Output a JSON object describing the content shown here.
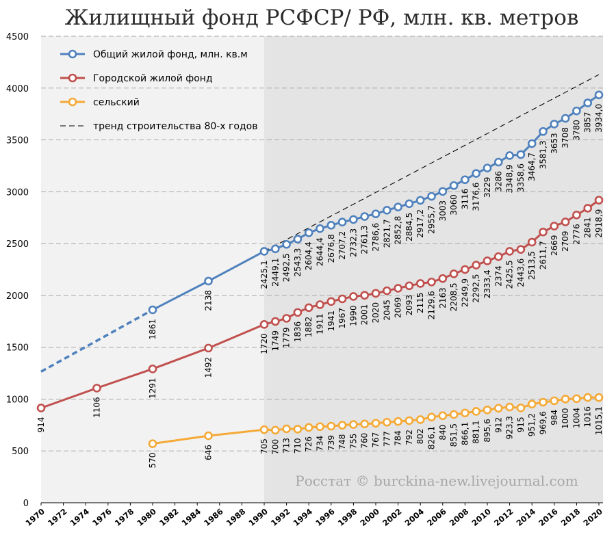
{
  "chart_data": {
    "type": "line",
    "title": "Жилищный фонд РСФСР/ РФ, млн. кв. метров",
    "source": "Росстат © burckina-new.livejournal.com",
    "ylim": [
      0,
      4500
    ],
    "yticks": [
      "0",
      "500",
      "1000",
      "1500",
      "2000",
      "2500",
      "3000",
      "3500",
      "4000",
      "4500"
    ],
    "xlim": [
      1970,
      2020
    ],
    "xticks": [
      "1970",
      "1972",
      "1974",
      "1976",
      "1978",
      "1980",
      "1982",
      "1984",
      "1986",
      "1988",
      "1990",
      "1992",
      "1994",
      "1996",
      "1998",
      "2000",
      "2002",
      "2004",
      "2006",
      "2008",
      "2010",
      "2012",
      "2014",
      "2016",
      "2018",
      "2020"
    ],
    "grid": true,
    "shaded_region": [
      1990,
      2020
    ],
    "legend_position": "top-left",
    "series": [
      {
        "name": "Общий жилой фонд, млн. кв.м",
        "color": "#4f81bd",
        "label_position": "below",
        "points": [
          {
            "x": 1980,
            "y": 1861,
            "label": "1861"
          },
          {
            "x": 1985,
            "y": 2138,
            "label": "2138"
          },
          {
            "x": 1990,
            "y": 2425.1,
            "label": "2425,1"
          },
          {
            "x": 1991,
            "y": 2449.1,
            "label": "2449,1"
          },
          {
            "x": 1992,
            "y": 2492.5,
            "label": "2492,5"
          },
          {
            "x": 1993,
            "y": 2543.3,
            "label": "2543,3"
          },
          {
            "x": 1994,
            "y": 2604.4,
            "label": "2604,4"
          },
          {
            "x": 1995,
            "y": 2644.4,
            "label": "2644,4"
          },
          {
            "x": 1996,
            "y": 2676.8,
            "label": "2676,8"
          },
          {
            "x": 1997,
            "y": 2707.2,
            "label": "2707,2"
          },
          {
            "x": 1998,
            "y": 2732.3,
            "label": "2732,3"
          },
          {
            "x": 1999,
            "y": 2761.3,
            "label": "2761,3"
          },
          {
            "x": 2000,
            "y": 2786.6,
            "label": "2786,6"
          },
          {
            "x": 2001,
            "y": 2821.7,
            "label": "2821,7"
          },
          {
            "x": 2002,
            "y": 2852.8,
            "label": "2852,8"
          },
          {
            "x": 2003,
            "y": 2884.5,
            "label": "2884,5"
          },
          {
            "x": 2004,
            "y": 2917.2,
            "label": "2917,2"
          },
          {
            "x": 2005,
            "y": 2955.7,
            "label": "2955,7"
          },
          {
            "x": 2006,
            "y": 3003,
            "label": "3003"
          },
          {
            "x": 2007,
            "y": 3060,
            "label": "3060"
          },
          {
            "x": 2008,
            "y": 3116,
            "label": "3116"
          },
          {
            "x": 2009,
            "y": 3176.6,
            "label": "3176,6"
          },
          {
            "x": 2010,
            "y": 3229,
            "label": "3229"
          },
          {
            "x": 2011,
            "y": 3286,
            "label": "3286"
          },
          {
            "x": 2012,
            "y": 3348.9,
            "label": "3348,9"
          },
          {
            "x": 2013,
            "y": 3358.6,
            "label": "3358,6"
          },
          {
            "x": 2014,
            "y": 3464.7,
            "label": "3464,7"
          },
          {
            "x": 2015,
            "y": 3581.3,
            "label": "3581,3"
          },
          {
            "x": 2016,
            "y": 3653,
            "label": "3653"
          },
          {
            "x": 2017,
            "y": 3708,
            "label": "3708"
          },
          {
            "x": 2018,
            "y": 3780,
            "label": "3780"
          },
          {
            "x": 2019,
            "y": 3857,
            "label": "3857"
          },
          {
            "x": 2020,
            "y": 3934.0,
            "label": "3934,0"
          }
        ],
        "extrapolation": [
          {
            "x": 1970,
            "y": 1265
          },
          {
            "x": 1980,
            "y": 1861
          }
        ]
      },
      {
        "name": "Городской жилой фонд",
        "color": "#c0504d",
        "label_position": "below",
        "points": [
          {
            "x": 1970,
            "y": 914,
            "label": "914"
          },
          {
            "x": 1975,
            "y": 1106,
            "label": "1106"
          },
          {
            "x": 1980,
            "y": 1291,
            "label": "1291"
          },
          {
            "x": 1985,
            "y": 1492,
            "label": "1492"
          },
          {
            "x": 1990,
            "y": 1720,
            "label": "1720"
          },
          {
            "x": 1991,
            "y": 1749,
            "label": "1749"
          },
          {
            "x": 1992,
            "y": 1779,
            "label": "1779"
          },
          {
            "x": 1993,
            "y": 1836,
            "label": "1836"
          },
          {
            "x": 1994,
            "y": 1882,
            "label": "1882"
          },
          {
            "x": 1995,
            "y": 1911,
            "label": "1911"
          },
          {
            "x": 1996,
            "y": 1941,
            "label": "1941"
          },
          {
            "x": 1997,
            "y": 1967,
            "label": "1967"
          },
          {
            "x": 1998,
            "y": 1990,
            "label": "1990"
          },
          {
            "x": 1999,
            "y": 2001,
            "label": "2001"
          },
          {
            "x": 2000,
            "y": 2020,
            "label": "2020"
          },
          {
            "x": 2001,
            "y": 2045,
            "label": "2045"
          },
          {
            "x": 2002,
            "y": 2069,
            "label": "2069"
          },
          {
            "x": 2003,
            "y": 2093,
            "label": "2093"
          },
          {
            "x": 2004,
            "y": 2115,
            "label": "2115"
          },
          {
            "x": 2005,
            "y": 2129.6,
            "label": "2129,6"
          },
          {
            "x": 2006,
            "y": 2163,
            "label": "2163"
          },
          {
            "x": 2007,
            "y": 2208.5,
            "label": "2208,5"
          },
          {
            "x": 2008,
            "y": 2249.9,
            "label": "2249,9"
          },
          {
            "x": 2009,
            "y": 2292.5,
            "label": "2292,5"
          },
          {
            "x": 2010,
            "y": 2333.4,
            "label": "2333,4"
          },
          {
            "x": 2011,
            "y": 2374,
            "label": "2374"
          },
          {
            "x": 2012,
            "y": 2425.5,
            "label": "2425,5"
          },
          {
            "x": 2013,
            "y": 2443.6,
            "label": "2443,6"
          },
          {
            "x": 2014,
            "y": 2513.5,
            "label": "2513,5"
          },
          {
            "x": 2015,
            "y": 2611.7,
            "label": "2611,7"
          },
          {
            "x": 2016,
            "y": 2669,
            "label": "2669"
          },
          {
            "x": 2017,
            "y": 2709,
            "label": "2709"
          },
          {
            "x": 2018,
            "y": 2776,
            "label": "2776"
          },
          {
            "x": 2019,
            "y": 2841,
            "label": "2841"
          },
          {
            "x": 2020,
            "y": 2918.9,
            "label": "2918,9"
          }
        ]
      },
      {
        "name": "сельский",
        "color": "#f5a936",
        "label_position": "below",
        "points": [
          {
            "x": 1980,
            "y": 570,
            "label": "570"
          },
          {
            "x": 1985,
            "y": 646,
            "label": "646"
          },
          {
            "x": 1990,
            "y": 705,
            "label": "705"
          },
          {
            "x": 1991,
            "y": 700,
            "label": "700"
          },
          {
            "x": 1992,
            "y": 713,
            "label": "713"
          },
          {
            "x": 1993,
            "y": 710,
            "label": "710"
          },
          {
            "x": 1994,
            "y": 726,
            "label": "726"
          },
          {
            "x": 1995,
            "y": 734,
            "label": "734"
          },
          {
            "x": 1996,
            "y": 739,
            "label": "739"
          },
          {
            "x": 1997,
            "y": 748,
            "label": "748"
          },
          {
            "x": 1998,
            "y": 755,
            "label": "755"
          },
          {
            "x": 1999,
            "y": 760,
            "label": "760"
          },
          {
            "x": 2000,
            "y": 767,
            "label": "767"
          },
          {
            "x": 2001,
            "y": 777,
            "label": "777"
          },
          {
            "x": 2002,
            "y": 784,
            "label": "784"
          },
          {
            "x": 2003,
            "y": 792,
            "label": "792"
          },
          {
            "x": 2004,
            "y": 802,
            "label": "802"
          },
          {
            "x": 2005,
            "y": 826.1,
            "label": "826,1"
          },
          {
            "x": 2006,
            "y": 840,
            "label": "840"
          },
          {
            "x": 2007,
            "y": 851.5,
            "label": "851,5"
          },
          {
            "x": 2008,
            "y": 866.1,
            "label": "866,1"
          },
          {
            "x": 2009,
            "y": 881.1,
            "label": "881,1"
          },
          {
            "x": 2010,
            "y": 895.6,
            "label": "895,6"
          },
          {
            "x": 2011,
            "y": 912,
            "label": "912"
          },
          {
            "x": 2012,
            "y": 923.3,
            "label": "923,3"
          },
          {
            "x": 2013,
            "y": 915,
            "label": "915"
          },
          {
            "x": 2014,
            "y": 951.2,
            "label": "951,2"
          },
          {
            "x": 2015,
            "y": 969.6,
            "label": "969,6"
          },
          {
            "x": 2016,
            "y": 984,
            "label": "984"
          },
          {
            "x": 2017,
            "y": 1000,
            "label": "1000"
          },
          {
            "x": 2018,
            "y": 1004,
            "label": "1004"
          },
          {
            "x": 2019,
            "y": 1016,
            "label": "1016"
          },
          {
            "x": 2020,
            "y": 1015.1,
            "label": "1015,1"
          }
        ]
      },
      {
        "name": "тренд строительства 80-х годов",
        "color": "#000000",
        "style": "dashed",
        "points": [
          {
            "x": 1990,
            "y": 2425
          },
          {
            "x": 2020,
            "y": 4130
          }
        ]
      }
    ]
  }
}
